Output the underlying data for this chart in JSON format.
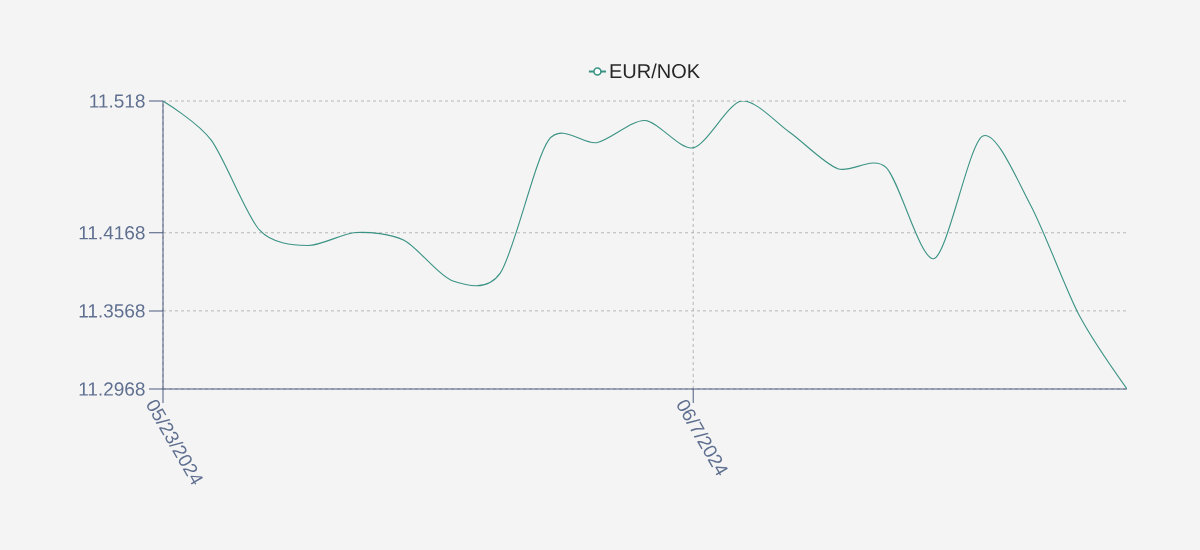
{
  "chart_data": {
    "type": "line",
    "categories": [
      "05/23/2024",
      null,
      null,
      null,
      null,
      null,
      null,
      null,
      null,
      null,
      null,
      "06/7/2024",
      null,
      null,
      null,
      null,
      null,
      null,
      null,
      null,
      null
    ],
    "series": [
      {
        "name": "EUR/NOK",
        "color": "#3a9384",
        "values": [
          11.518,
          11.488,
          11.419,
          11.407,
          11.417,
          11.411,
          11.38,
          11.386,
          11.488,
          11.486,
          11.503,
          11.482,
          11.518,
          11.494,
          11.466,
          11.467,
          11.397,
          11.491,
          11.438,
          11.354,
          11.2968
        ]
      }
    ],
    "ylim": [
      11.2968,
      11.518
    ],
    "yticks": [
      11.2968,
      11.3568,
      11.4168,
      11.518
    ],
    "grid": true,
    "legend": "top",
    "marker": "none",
    "line_style": "solid"
  }
}
